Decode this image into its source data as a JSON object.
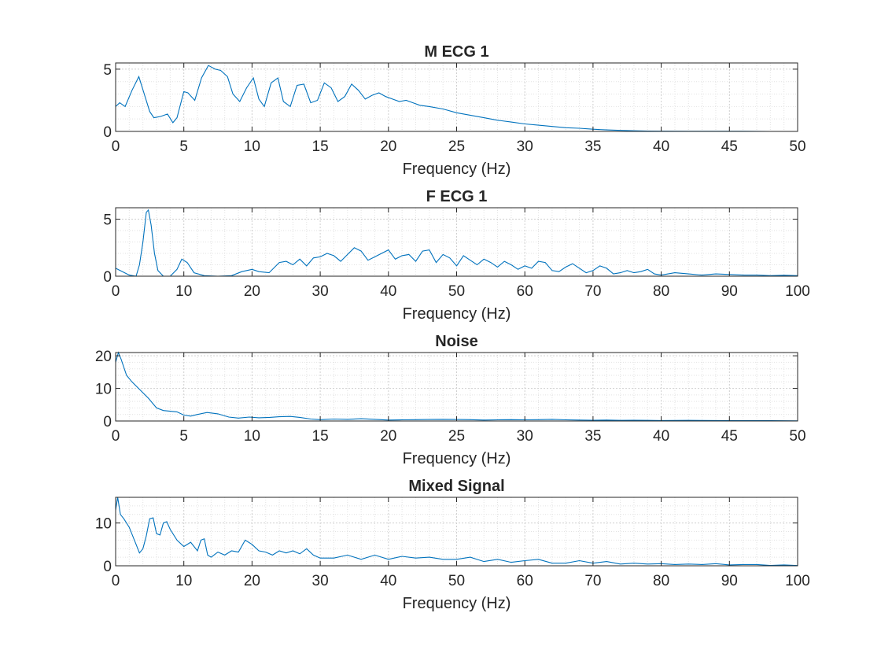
{
  "figure": {
    "background": "#ffffff",
    "line_color": "#0072bd"
  },
  "chart_data": [
    {
      "type": "line",
      "title": "M ECG 1",
      "xlabel": "Frequency (Hz)",
      "ylabel": "",
      "xlim": [
        0,
        50
      ],
      "ylim": [
        0,
        5.5
      ],
      "xticks": [
        0,
        5,
        10,
        15,
        20,
        25,
        30,
        35,
        40,
        45,
        50
      ],
      "yticks": [
        0,
        5
      ],
      "grid": true,
      "minor_grid": true,
      "series": [
        {
          "x": [
            0,
            0.3,
            0.7,
            1.2,
            1.7,
            2.1,
            2.5,
            2.8,
            3.3,
            3.8,
            4.2,
            4.5,
            5.0,
            5.3,
            5.8,
            6.3,
            6.8,
            7.3,
            7.7,
            8.2,
            8.6,
            9.1,
            9.6,
            10.1,
            10.5,
            10.9,
            11.4,
            11.9,
            12.3,
            12.8,
            13.3,
            13.8,
            14.3,
            14.8,
            15.3,
            15.8,
            16.3,
            16.8,
            17.3,
            17.8,
            18.3,
            18.8,
            19.3,
            19.8,
            20.3,
            20.8,
            21.3,
            21.8,
            22.3,
            23,
            24,
            25,
            26,
            27,
            28,
            29,
            30,
            31,
            32,
            33,
            34,
            35,
            36,
            37,
            38,
            39,
            40,
            42,
            44,
            46,
            48,
            50
          ],
          "y": [
            2.0,
            2.3,
            2.0,
            3.3,
            4.4,
            3.0,
            1.6,
            1.1,
            1.2,
            1.4,
            0.7,
            1.1,
            3.2,
            3.1,
            2.5,
            4.3,
            5.3,
            5.0,
            4.9,
            4.4,
            3.0,
            2.4,
            3.5,
            4.3,
            2.6,
            2.0,
            3.9,
            4.3,
            2.4,
            2.0,
            3.7,
            3.8,
            2.3,
            2.5,
            3.9,
            3.5,
            2.4,
            2.8,
            3.8,
            3.3,
            2.6,
            2.9,
            3.1,
            2.8,
            2.6,
            2.4,
            2.5,
            2.3,
            2.1,
            2.0,
            1.8,
            1.5,
            1.3,
            1.1,
            0.9,
            0.75,
            0.6,
            0.5,
            0.4,
            0.3,
            0.25,
            0.18,
            0.12,
            0.08,
            0.05,
            0.03,
            0.02,
            0.01,
            0.01,
            0.01,
            0.0,
            0.0
          ]
        }
      ]
    },
    {
      "type": "line",
      "title": "F ECG 1",
      "xlabel": "Frequency (Hz)",
      "ylabel": "",
      "xlim": [
        0,
        100
      ],
      "ylim": [
        0,
        6
      ],
      "xticks": [
        0,
        10,
        20,
        30,
        40,
        50,
        60,
        70,
        80,
        90,
        100
      ],
      "yticks": [
        0,
        5
      ],
      "grid": true,
      "minor_grid": true,
      "series": [
        {
          "x": [
            0,
            1,
            2,
            3,
            3.5,
            4,
            4.5,
            4.8,
            5.2,
            5.7,
            6.2,
            7,
            8,
            9,
            9.7,
            10.5,
            11.5,
            13,
            15,
            17,
            18.5,
            20,
            21,
            22.5,
            24,
            25,
            26,
            27,
            28,
            29,
            30,
            31,
            32,
            33,
            34,
            35,
            36,
            37,
            38,
            39,
            40,
            41,
            42,
            43,
            44,
            45,
            46,
            47,
            48,
            49,
            50,
            51,
            52,
            53,
            54,
            55,
            56,
            57,
            58,
            59,
            60,
            61,
            62,
            63,
            64,
            65,
            66,
            67,
            68,
            69,
            70,
            71,
            72,
            73,
            74,
            75,
            76,
            77,
            78,
            79,
            80,
            82,
            84,
            86,
            88,
            90,
            92,
            94,
            96,
            98,
            100
          ],
          "y": [
            0.7,
            0.4,
            0.1,
            0.0,
            1.0,
            3.0,
            5.6,
            5.8,
            4.5,
            2.0,
            0.5,
            0.0,
            0.0,
            0.6,
            1.5,
            1.2,
            0.3,
            0.05,
            0.0,
            0.05,
            0.4,
            0.6,
            0.4,
            0.3,
            1.2,
            1.3,
            1.0,
            1.5,
            0.9,
            1.6,
            1.7,
            2.0,
            1.8,
            1.3,
            1.9,
            2.5,
            2.2,
            1.4,
            1.7,
            2.0,
            2.3,
            1.5,
            1.8,
            1.9,
            1.3,
            2.2,
            2.3,
            1.2,
            1.9,
            1.6,
            0.9,
            1.8,
            1.4,
            1.0,
            1.5,
            1.2,
            0.8,
            1.3,
            1.0,
            0.6,
            0.9,
            0.7,
            1.3,
            1.2,
            0.5,
            0.4,
            0.8,
            1.1,
            0.7,
            0.3,
            0.5,
            0.9,
            0.7,
            0.2,
            0.3,
            0.5,
            0.3,
            0.4,
            0.6,
            0.2,
            0.1,
            0.3,
            0.2,
            0.1,
            0.2,
            0.15,
            0.1,
            0.1,
            0.05,
            0.08,
            0.05
          ]
        }
      ]
    },
    {
      "type": "line",
      "title": "Noise",
      "xlabel": "Frequency (Hz)",
      "ylabel": "",
      "xlim": [
        0,
        50
      ],
      "ylim": [
        0,
        21
      ],
      "xticks": [
        0,
        5,
        10,
        15,
        20,
        25,
        30,
        35,
        40,
        45,
        50
      ],
      "yticks": [
        0,
        10,
        20
      ],
      "grid": true,
      "minor_grid": true,
      "series": [
        {
          "x": [
            0,
            0.2,
            0.4,
            0.8,
            1.2,
            1.8,
            2.4,
            3.0,
            3.5,
            4.0,
            4.5,
            5.0,
            5.5,
            6.0,
            6.7,
            7.5,
            8.3,
            9.0,
            9.8,
            10.5,
            11.3,
            12.0,
            12.8,
            13.5,
            14.3,
            15,
            16,
            17,
            18,
            19,
            20,
            21,
            22,
            23,
            24,
            25,
            26,
            27,
            28,
            29,
            30,
            31,
            32,
            33,
            34,
            35,
            36,
            37,
            38,
            39,
            40,
            42,
            44,
            46,
            48,
            50
          ],
          "y": [
            18,
            21,
            19,
            14,
            12,
            9.5,
            7,
            4,
            3.2,
            3.0,
            2.8,
            1.8,
            1.5,
            2.0,
            2.6,
            2.2,
            1.2,
            0.9,
            1.2,
            1.0,
            1.1,
            1.3,
            1.4,
            1.1,
            0.6,
            0.4,
            0.6,
            0.5,
            0.7,
            0.5,
            0.3,
            0.35,
            0.4,
            0.45,
            0.5,
            0.45,
            0.4,
            0.3,
            0.35,
            0.4,
            0.35,
            0.4,
            0.5,
            0.35,
            0.3,
            0.25,
            0.3,
            0.2,
            0.25,
            0.2,
            0.15,
            0.2,
            0.15,
            0.1,
            0.1,
            0.05
          ]
        }
      ]
    },
    {
      "type": "line",
      "title": "Mixed Signal",
      "xlabel": "Frequency (Hz)",
      "ylabel": "",
      "xlim": [
        0,
        100
      ],
      "ylim": [
        0,
        16
      ],
      "xticks": [
        0,
        10,
        20,
        30,
        40,
        50,
        60,
        70,
        80,
        90,
        100
      ],
      "yticks": [
        0,
        10
      ],
      "grid": true,
      "minor_grid": true,
      "series": [
        {
          "x": [
            0,
            0.3,
            0.7,
            1.2,
            2,
            3,
            3.5,
            4,
            4.5,
            5,
            5.5,
            6,
            6.5,
            7,
            7.5,
            8,
            9,
            10,
            11,
            12,
            12.5,
            13,
            13.5,
            14,
            15,
            16,
            17,
            18,
            19,
            20,
            21,
            22,
            23,
            24,
            25,
            26,
            27,
            28,
            29,
            30,
            32,
            34,
            36,
            38,
            40,
            42,
            44,
            46,
            48,
            50,
            52,
            54,
            56,
            58,
            60,
            62,
            64,
            66,
            68,
            70,
            72,
            74,
            76,
            78,
            80,
            82,
            84,
            86,
            88,
            90,
            92,
            94,
            96,
            98,
            100
          ],
          "y": [
            13,
            16,
            12,
            11,
            9,
            5,
            3,
            4,
            7,
            11,
            11.2,
            7.5,
            7.2,
            10,
            10.3,
            8.5,
            6,
            4.5,
            5.5,
            3.5,
            6,
            6.3,
            2.5,
            2.0,
            3.2,
            2.5,
            3.5,
            3.2,
            6,
            5,
            3.5,
            3.2,
            2.5,
            3.5,
            3.0,
            3.5,
            2.8,
            4.0,
            2.5,
            1.8,
            1.8,
            2.5,
            1.5,
            2.5,
            1.5,
            2.2,
            1.8,
            2.0,
            1.5,
            1.5,
            2.0,
            1.0,
            1.5,
            0.8,
            1.2,
            1.5,
            0.6,
            0.6,
            1.2,
            0.6,
            1.0,
            0.4,
            0.6,
            0.4,
            0.5,
            0.3,
            0.4,
            0.3,
            0.5,
            0.2,
            0.3,
            0.3,
            0.1,
            0.2,
            0.05
          ]
        }
      ]
    }
  ]
}
